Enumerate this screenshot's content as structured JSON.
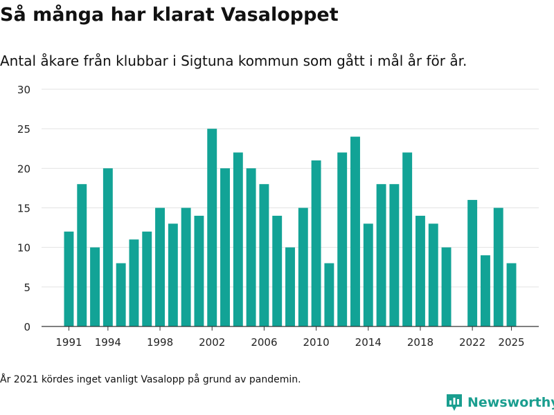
{
  "header": {
    "title": "Så många har klarat Vasaloppet",
    "subtitle": "Antal åkare från klubbar i Sigtuna kommun som gått i mål år för år."
  },
  "footer": {
    "note": "År 2021 kördes inget vanligt Vasalopp på grund av pandemin.",
    "brand_name": "Newsworthy",
    "brand_icon": "newsworthy-logo-icon"
  },
  "colors": {
    "bar": "#12a396",
    "grid": "#e2e2e2",
    "axis": "#333333",
    "brand": "#1a9e8f"
  },
  "chart_data": {
    "type": "bar",
    "title": "Så många har klarat Vasaloppet",
    "subtitle": "Antal åkare från klubbar i Sigtuna kommun som gått i mål år för år.",
    "xlabel": "",
    "ylabel": "",
    "ylim": [
      0,
      30
    ],
    "yticks": [
      0,
      5,
      10,
      15,
      20,
      25,
      30
    ],
    "xticks": [
      1991,
      1994,
      1998,
      2002,
      2006,
      2010,
      2014,
      2018,
      2022,
      2025
    ],
    "xlim": [
      1988.9,
      2027.1
    ],
    "grid": true,
    "series": [
      {
        "name": "Antal åkare",
        "x": [
          1991,
          1992,
          1993,
          1994,
          1995,
          1996,
          1997,
          1998,
          1999,
          2000,
          2001,
          2002,
          2003,
          2004,
          2005,
          2006,
          2007,
          2008,
          2009,
          2010,
          2011,
          2012,
          2013,
          2014,
          2015,
          2016,
          2017,
          2018,
          2019,
          2020,
          2022,
          2023,
          2024,
          2025
        ],
        "values": [
          12,
          18,
          10,
          20,
          8,
          11,
          12,
          15,
          13,
          15,
          14,
          25,
          20,
          22,
          20,
          18,
          14,
          10,
          15,
          21,
          8,
          22,
          24,
          13,
          18,
          18,
          22,
          14,
          13,
          10,
          16,
          9,
          15,
          8
        ]
      }
    ]
  }
}
